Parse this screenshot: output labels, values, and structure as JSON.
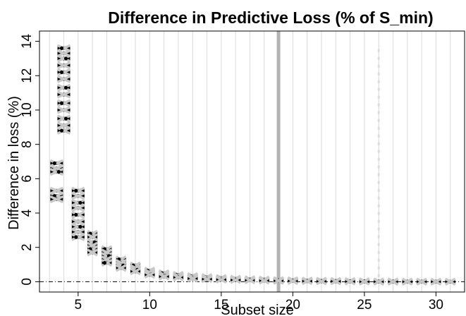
{
  "chart_data": {
    "type": "scatter",
    "title": "Difference in Predictive Loss (% of S_min)",
    "xlabel": "Subset size",
    "ylabel": "Difference in loss (%)",
    "xlim": [
      2.3,
      32.0
    ],
    "ylim": [
      -0.6,
      14.6
    ],
    "xticks": [
      5,
      10,
      15,
      20,
      25,
      30
    ],
    "yticks": [
      0,
      2,
      4,
      6,
      8,
      10,
      12,
      14
    ],
    "x_gridlines": "vertical light grey line at every integer subset size",
    "reference_lines": [
      {
        "orientation": "horizontal",
        "value": 0,
        "style": "dash-dot"
      },
      {
        "orientation": "vertical",
        "value": 19,
        "style": "thick solid grey"
      },
      {
        "orientation": "vertical",
        "value": 26,
        "style": "dotted light grey",
        "range": [
          0,
          13.5
        ]
      }
    ],
    "groups": [
      {
        "x": 3.5,
        "values": [
          6.9,
          6.6,
          6.4,
          5.3,
          5.0,
          4.8
        ]
      },
      {
        "x": 4.0,
        "values": [
          13.6,
          13.3,
          13.0,
          12.6,
          12.2,
          11.8,
          11.3,
          10.9,
          10.4,
          10.0,
          9.5,
          9.1,
          8.8
        ]
      },
      {
        "x": 5.0,
        "values": [
          5.3,
          5.0,
          4.6,
          4.3,
          3.9,
          3.5,
          3.2,
          2.9,
          2.6
        ]
      },
      {
        "x": 6.0,
        "values": [
          2.8,
          2.6,
          2.3,
          2.1,
          1.9,
          1.7
        ]
      },
      {
        "x": 7.0,
        "values": [
          1.9,
          1.7,
          1.5,
          1.3,
          1.1
        ]
      },
      {
        "x": 8.0,
        "values": [
          1.3,
          1.1,
          0.95,
          0.8
        ]
      },
      {
        "x": 9.0,
        "values": [
          0.95,
          0.8,
          0.7,
          0.6
        ]
      },
      {
        "x": 10.0,
        "values": [
          0.65,
          0.55,
          0.45,
          0.4
        ]
      },
      {
        "x": 11.0,
        "values": [
          0.5,
          0.4,
          0.35,
          0.3
        ]
      },
      {
        "x": 12.0,
        "values": [
          0.4,
          0.33,
          0.28,
          0.25
        ]
      },
      {
        "x": 13.0,
        "values": [
          0.33,
          0.27,
          0.22,
          0.18
        ]
      },
      {
        "x": 14.0,
        "values": [
          0.27,
          0.22,
          0.18,
          0.15
        ]
      },
      {
        "x": 15.0,
        "values": [
          0.22,
          0.18,
          0.14,
          0.12
        ]
      },
      {
        "x": 16.0,
        "values": [
          0.18,
          0.15,
          0.12,
          0.1
        ]
      },
      {
        "x": 17.0,
        "values": [
          0.15,
          0.12,
          0.1,
          0.08
        ]
      },
      {
        "x": 18.0,
        "values": [
          0.13,
          0.1,
          0.08,
          0.06
        ]
      },
      {
        "x": 19.0,
        "values": [
          0.1,
          0.08,
          0.06,
          0.05
        ]
      },
      {
        "x": 20.0,
        "values": [
          0.09,
          0.07,
          0.05,
          0.04
        ]
      },
      {
        "x": 21.0,
        "values": [
          0.07,
          0.05,
          0.04,
          0.03
        ]
      },
      {
        "x": 22.0,
        "values": [
          0.06,
          0.05,
          0.03,
          0.02
        ]
      },
      {
        "x": 23.0,
        "values": [
          0.05,
          0.04,
          0.03,
          0.02
        ]
      },
      {
        "x": 24.0,
        "values": [
          0.04,
          0.03,
          0.02,
          0.01
        ]
      },
      {
        "x": 25.0,
        "values": [
          0.03,
          0.02,
          0.01,
          0.0
        ]
      },
      {
        "x": 26.0,
        "values": [
          0.02,
          0.01,
          0.0,
          0.0
        ]
      },
      {
        "x": 27.0,
        "values": [
          0.02,
          0.01,
          0.0,
          0.0
        ]
      },
      {
        "x": 28.0,
        "values": [
          0.01,
          0.0,
          0.0,
          0.0
        ]
      },
      {
        "x": 29.0,
        "values": [
          0.01,
          0.0,
          0.0,
          0.0
        ]
      },
      {
        "x": 30.0,
        "values": [
          0.0,
          0.0,
          0.0,
          0.0
        ]
      },
      {
        "x": 31.0,
        "values": [
          0.0,
          0.0
        ]
      }
    ],
    "colors": {
      "marker_black": "#000000",
      "marker_grey": "#c8c8c8",
      "grid": "#d9d9d9",
      "ref19": "#b3b3b3",
      "ref26": "#dddddd"
    }
  }
}
